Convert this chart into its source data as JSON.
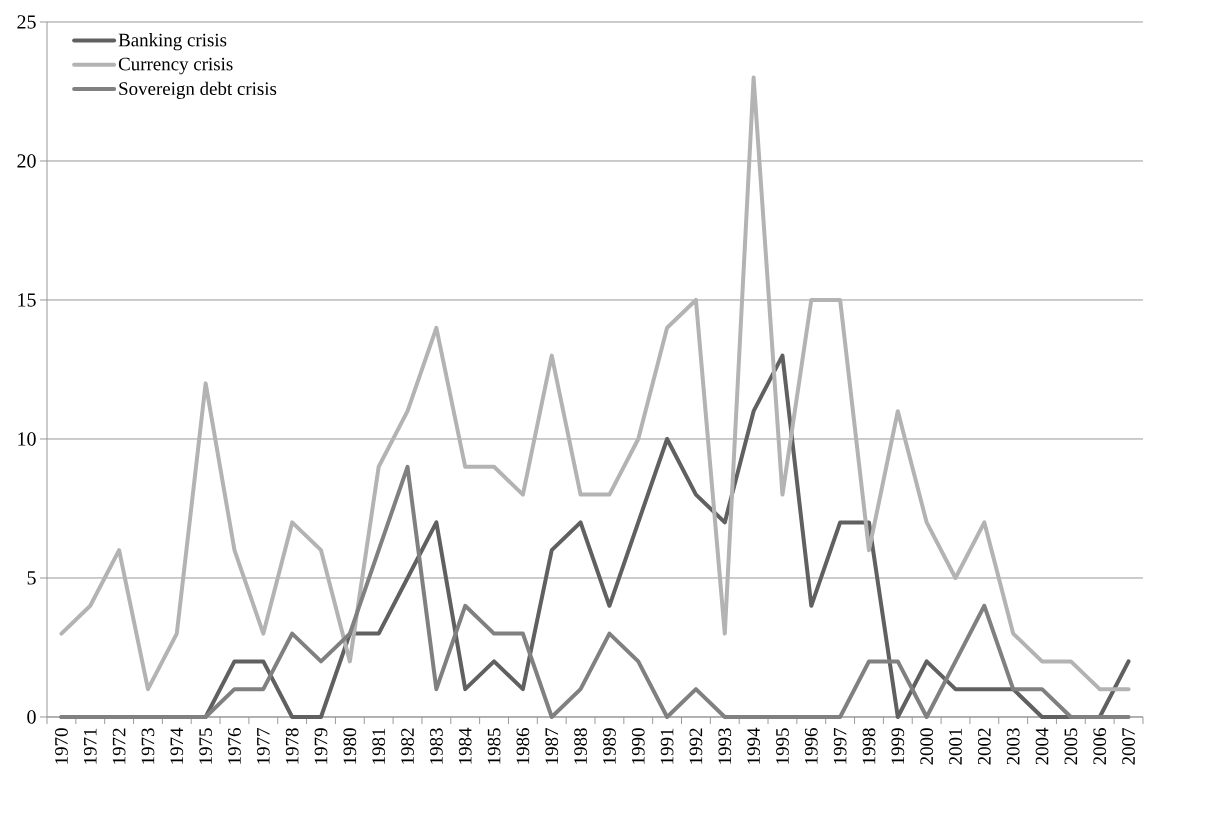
{
  "chart_data": {
    "type": "line",
    "categories": [
      "1970",
      "1971",
      "1972",
      "1973",
      "1974",
      "1975",
      "1976",
      "1977",
      "1978",
      "1979",
      "1980",
      "1981",
      "1982",
      "1983",
      "1984",
      "1985",
      "1986",
      "1987",
      "1988",
      "1989",
      "1990",
      "1991",
      "1992",
      "1993",
      "1994",
      "1995",
      "1996",
      "1997",
      "1998",
      "1999",
      "2000",
      "2001",
      "2002",
      "2003",
      "2004",
      "2005",
      "2006",
      "2007"
    ],
    "series": [
      {
        "name": "Banking crisis",
        "color": "#606060",
        "values": [
          0,
          0,
          0,
          0,
          0,
          0,
          2,
          2,
          0,
          0,
          3,
          3,
          5,
          7,
          1,
          2,
          1,
          6,
          7,
          4,
          7,
          10,
          8,
          7,
          11,
          13,
          4,
          7,
          7,
          0,
          2,
          1,
          1,
          1,
          0,
          0,
          0,
          2
        ]
      },
      {
        "name": "Currency crisis",
        "color": "#b3b3b3",
        "values": [
          3,
          4,
          6,
          1,
          3,
          12,
          6,
          3,
          7,
          6,
          2,
          9,
          11,
          14,
          9,
          9,
          8,
          13,
          8,
          8,
          10,
          14,
          15,
          3,
          23,
          8,
          15,
          15,
          6,
          11,
          7,
          5,
          7,
          3,
          2,
          2,
          1,
          1
        ]
      },
      {
        "name": "Sovereign debt crisis",
        "color": "#808080",
        "values": [
          0,
          0,
          0,
          0,
          0,
          0,
          1,
          1,
          3,
          2,
          3,
          6,
          9,
          1,
          4,
          3,
          3,
          0,
          1,
          3,
          2,
          0,
          1,
          0,
          0,
          0,
          0,
          0,
          2,
          2,
          0,
          2,
          4,
          1,
          1,
          0,
          0,
          0
        ]
      }
    ],
    "ylim": [
      0,
      25
    ],
    "yticks": [
      0,
      5,
      10,
      15,
      20,
      25
    ],
    "grid": "y",
    "legend": "top left",
    "marker": "none",
    "line_style": "solid"
  }
}
